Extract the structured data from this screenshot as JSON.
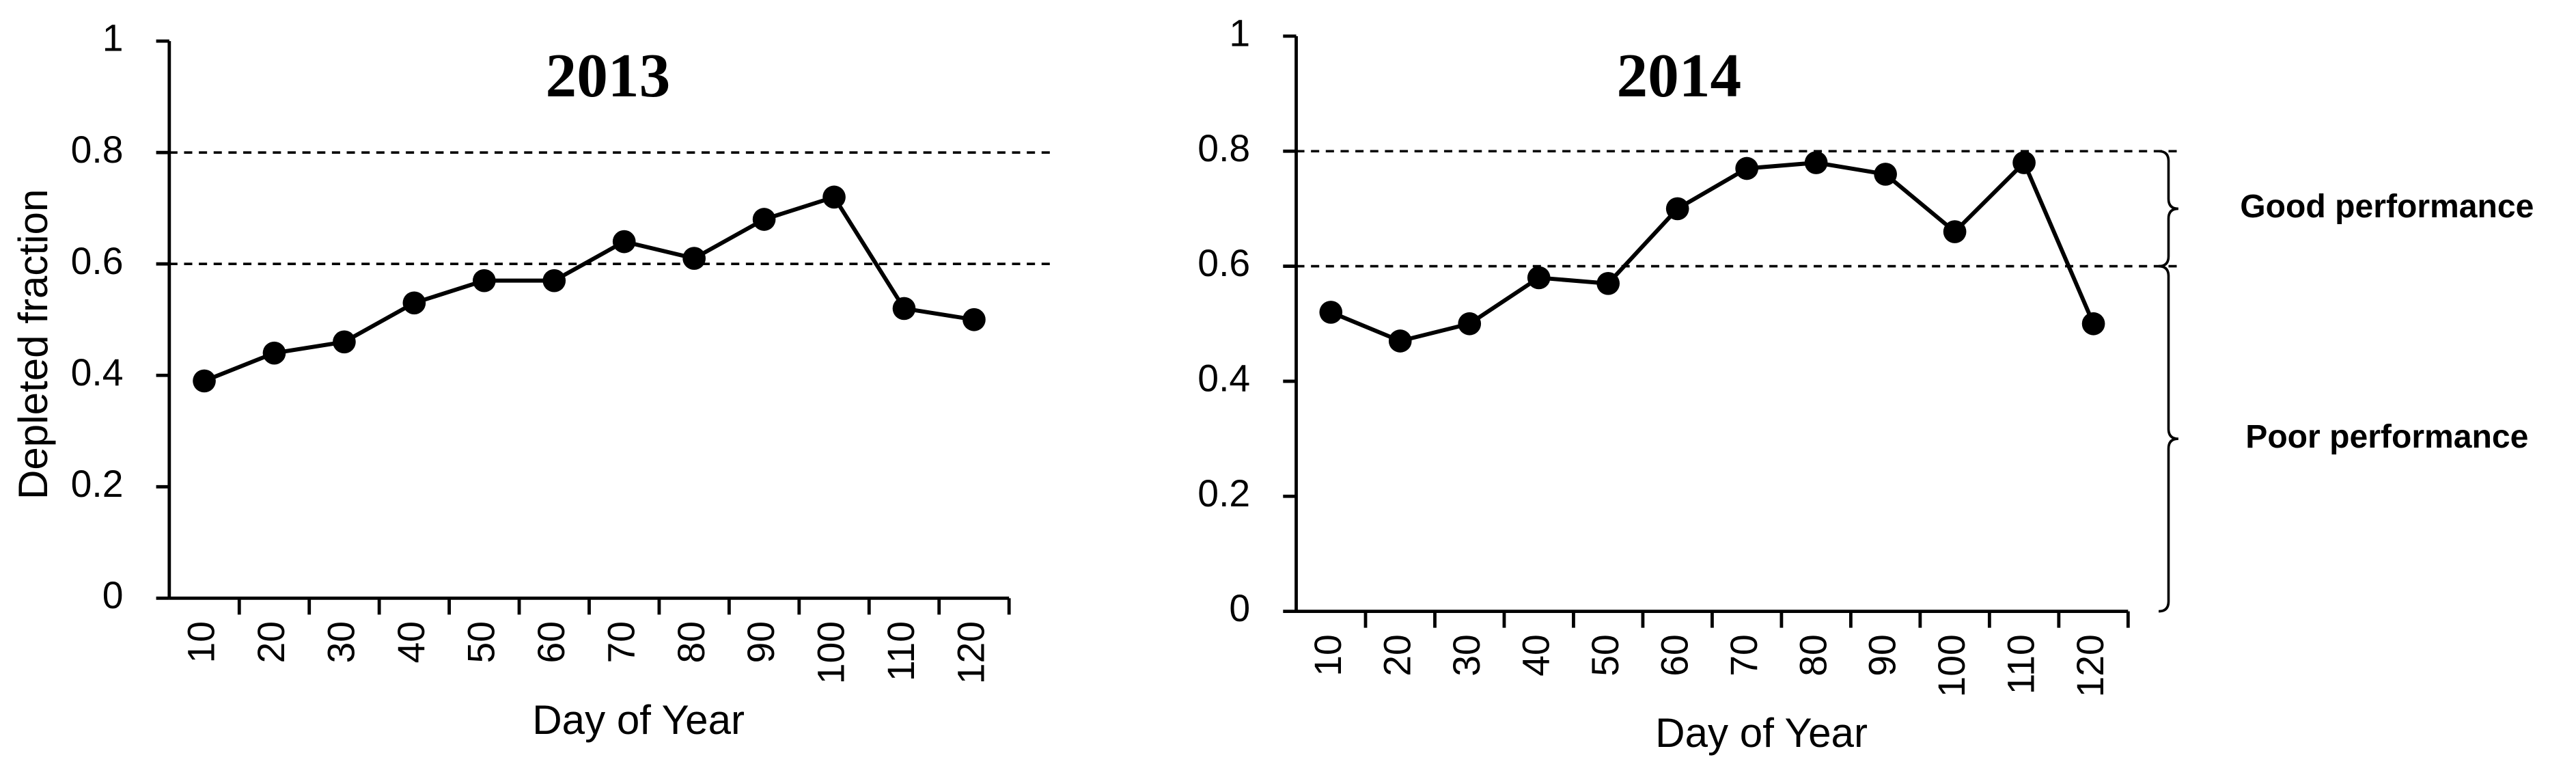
{
  "chart_data": [
    {
      "type": "line",
      "title": "2013",
      "xlabel": "Day of Year",
      "ylabel": "Depleted fraction",
      "categories": [
        "10",
        "20",
        "30",
        "40",
        "50",
        "60",
        "70",
        "80",
        "90",
        "100",
        "110",
        "120"
      ],
      "values": [
        0.39,
        0.44,
        0.46,
        0.53,
        0.57,
        0.57,
        0.64,
        0.61,
        0.68,
        0.72,
        0.52,
        0.5
      ],
      "color": "#000000",
      "ylim": [
        0,
        1
      ],
      "yticks": [
        0,
        0.2,
        0.4,
        0.6,
        0.8,
        1
      ],
      "reference_lines": [
        0.6,
        0.8
      ]
    },
    {
      "type": "line",
      "title": "2014",
      "xlabel": "Day of Year",
      "categories": [
        "10",
        "20",
        "30",
        "40",
        "50",
        "60",
        "70",
        "80",
        "90",
        "100",
        "110",
        "120"
      ],
      "values": [
        0.52,
        0.47,
        0.5,
        0.58,
        0.57,
        0.7,
        0.77,
        0.78,
        0.76,
        0.66,
        0.78,
        0.5
      ],
      "color": "#000000",
      "ylim": [
        0,
        1
      ],
      "yticks": [
        0,
        0.2,
        0.4,
        0.6,
        0.8,
        1
      ],
      "reference_lines": [
        0.6,
        0.8
      ],
      "annotations": [
        {
          "text": "Good performance",
          "range": [
            0.6,
            0.8
          ]
        },
        {
          "text": "Poor performance",
          "range": [
            0,
            0.6
          ]
        }
      ]
    }
  ]
}
